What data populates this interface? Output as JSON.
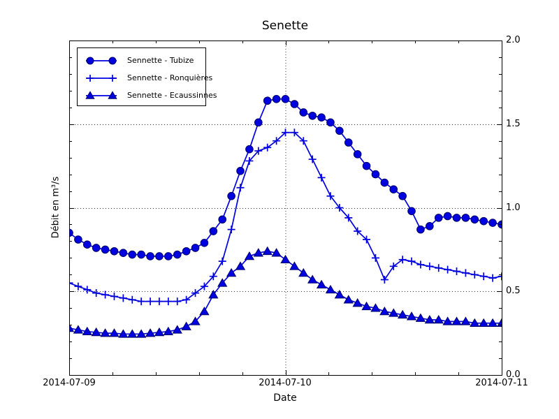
{
  "chart_data": {
    "type": "line",
    "title": "Senette",
    "xlabel": "Date",
    "ylabel": "Débit en m³/s",
    "x_tick_labels": [
      "2014-07-09",
      "2014-07-10",
      "2014-07-11"
    ],
    "x_tick_hours": [
      0,
      24,
      48
    ],
    "x_minor_tick_hours": [
      4.8,
      9.6,
      14.4,
      19.2,
      28.8,
      33.6,
      38.4,
      43.2
    ],
    "y_tick_labels": [
      "0.0",
      "0.5",
      "1.0",
      "1.5",
      "2.0"
    ],
    "y_ticks": [
      0.0,
      0.5,
      1.0,
      1.5,
      2.0
    ],
    "y_minor_step": 0.1,
    "ylim": [
      0.0,
      2.0
    ],
    "xlim_hours": [
      0,
      48
    ],
    "interval_hours": 1,
    "grid": "dotted",
    "grid_color": "#3a3a3a",
    "legend_position": "upper-left",
    "y_gridline_values": [
      0.5,
      1.0,
      1.5
    ],
    "x_gridline_hours": [
      24
    ],
    "marker_edge_color": "#000066",
    "series": [
      {
        "name": "Sennette - Tubize",
        "marker": "circle",
        "color": "#0000e0",
        "values": [
          0.85,
          0.81,
          0.78,
          0.76,
          0.75,
          0.74,
          0.73,
          0.72,
          0.72,
          0.71,
          0.71,
          0.71,
          0.72,
          0.74,
          0.76,
          0.79,
          0.86,
          0.93,
          1.07,
          1.22,
          1.35,
          1.51,
          1.64,
          1.65,
          1.65,
          1.62,
          1.57,
          1.55,
          1.54,
          1.51,
          1.46,
          1.39,
          1.32,
          1.25,
          1.2,
          1.15,
          1.11,
          1.07,
          0.98,
          0.87,
          0.89,
          0.94,
          0.95,
          0.94,
          0.94,
          0.93,
          0.92,
          0.91,
          0.9
        ]
      },
      {
        "name": "Sennette - Ronquières",
        "marker": "plus",
        "color": "#0000e0",
        "values": [
          0.55,
          0.53,
          0.51,
          0.49,
          0.48,
          0.47,
          0.46,
          0.45,
          0.44,
          0.44,
          0.44,
          0.44,
          0.44,
          0.45,
          0.49,
          0.53,
          0.59,
          0.68,
          0.87,
          1.12,
          1.28,
          1.34,
          1.36,
          1.4,
          1.45,
          1.45,
          1.4,
          1.29,
          1.18,
          1.07,
          1.0,
          0.94,
          0.86,
          0.81,
          0.7,
          0.57,
          0.65,
          0.69,
          0.68,
          0.66,
          0.65,
          0.64,
          0.63,
          0.62,
          0.61,
          0.6,
          0.59,
          0.58,
          0.59
        ]
      },
      {
        "name": "Sennette - Ecaussinnes",
        "marker": "triangle",
        "color": "#0000e0",
        "values": [
          0.28,
          0.27,
          0.26,
          0.255,
          0.25,
          0.25,
          0.245,
          0.245,
          0.245,
          0.25,
          0.255,
          0.26,
          0.27,
          0.29,
          0.32,
          0.38,
          0.48,
          0.55,
          0.61,
          0.65,
          0.71,
          0.73,
          0.74,
          0.73,
          0.69,
          0.65,
          0.61,
          0.57,
          0.54,
          0.51,
          0.48,
          0.45,
          0.43,
          0.41,
          0.4,
          0.38,
          0.37,
          0.36,
          0.35,
          0.34,
          0.33,
          0.33,
          0.32,
          0.32,
          0.32,
          0.31,
          0.31,
          0.31,
          0.31
        ]
      }
    ]
  }
}
